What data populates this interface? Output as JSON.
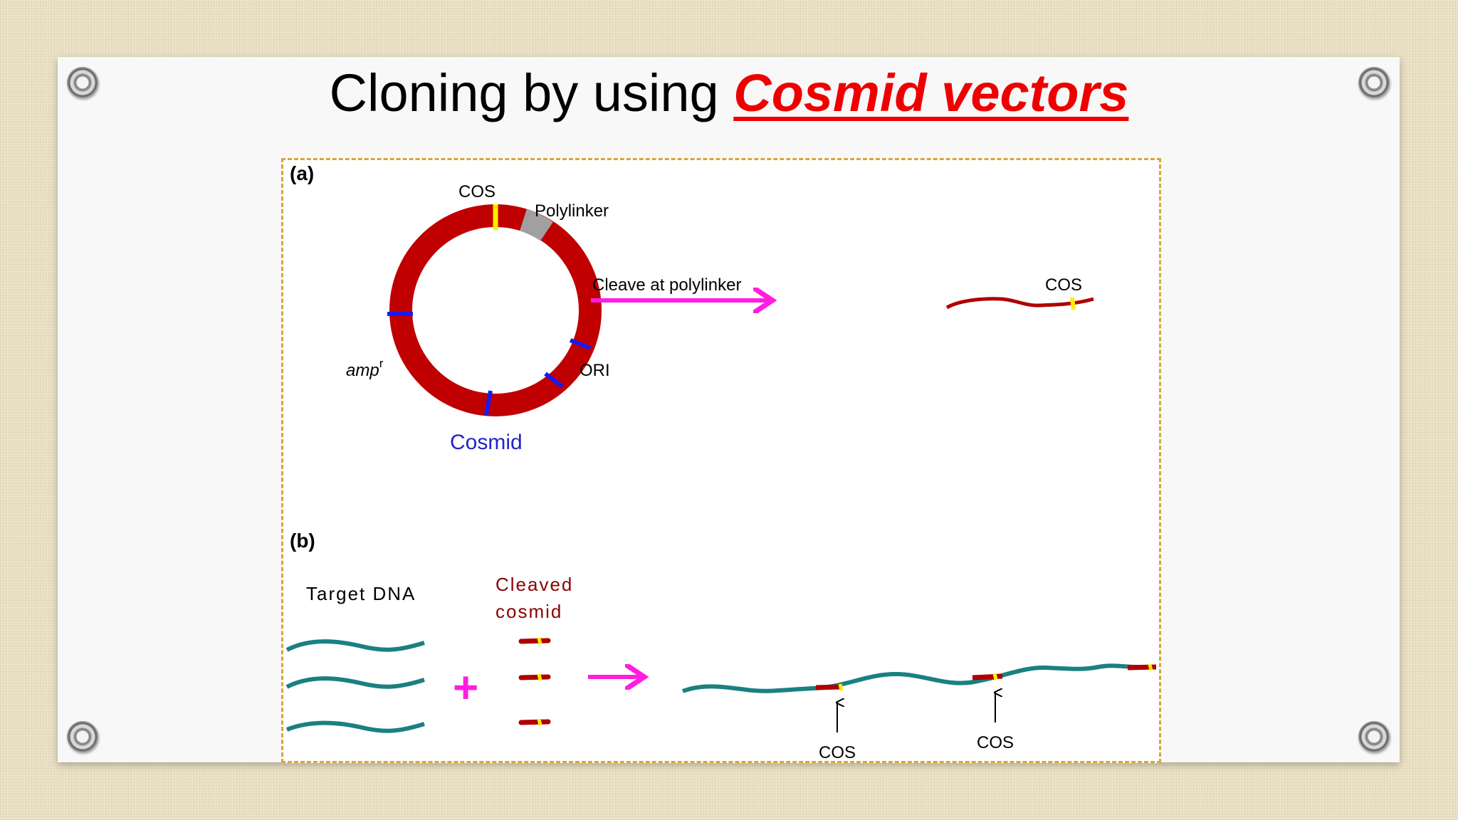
{
  "slide": {
    "title_plain": "Cloning by using ",
    "title_accent": "Cosmid vectors"
  },
  "panel_a": {
    "label": "(a)",
    "cos_label": "COS",
    "polylinker_label": "Polylinker",
    "amp_label": "amp",
    "amp_superscript": "r",
    "ori_label": "ORI",
    "cosmid_label": "Cosmid",
    "cleave_label": "Cleave at polylinker",
    "linear_cos_label": "COS"
  },
  "panel_b": {
    "label": "(b)",
    "target_dna_label": "Target DNA",
    "cleaved_label_line1": "Cleaved",
    "cleaved_label_line2": "cosmid",
    "plus_sign": "+",
    "cos_label_1": "COS",
    "cos_label_2": "COS"
  },
  "colors": {
    "title_accent": "#ee0000",
    "cosmid_ring": "#c00000",
    "cos_site": "#ffee00",
    "polylinker": "#a0a0a0",
    "marker": "#1a1aee",
    "arrow": "#ff1ee0",
    "target_dna": "#1a8080",
    "cosmid_dna": "#b00000",
    "cosmid_label": "#2222cc",
    "cleaved_label": "#8b0000",
    "frame_border": "#d4a83a"
  }
}
